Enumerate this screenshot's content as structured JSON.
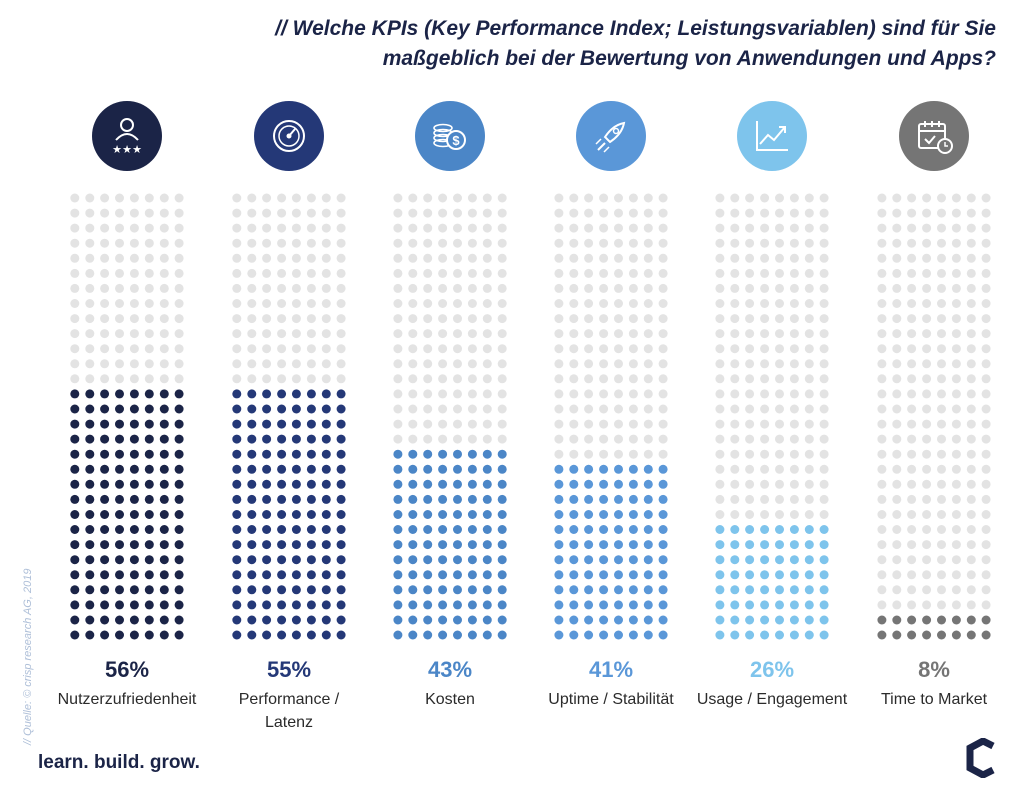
{
  "title": {
    "line1": "// Welche KPIs (Key Performance Index; Leistungsvariablen) sind für Sie",
    "line2": "maßgeblich bei der Bewertung von Anwendungen und Apps?"
  },
  "chart_data": {
    "type": "bar",
    "style": "dot-column",
    "categories": [
      "Nutzerzufriedenheit",
      "Performance / Latenz",
      "Kosten",
      "Uptime / Stabilität",
      "Usage / Engagement",
      "Time to Market"
    ],
    "category_lines": [
      [
        "Nutzerzufriedenheit"
      ],
      [
        "Performance /",
        "Latenz"
      ],
      [
        "Kosten"
      ],
      [
        "Uptime / Stabilität"
      ],
      [
        "Usage / Engagement"
      ],
      [
        "Time to Market"
      ]
    ],
    "values": [
      56,
      55,
      43,
      41,
      26,
      8
    ],
    "value_labels": [
      "56%",
      "55%",
      "43%",
      "41%",
      "26%",
      "8%"
    ],
    "unit": "%",
    "ylim": [
      0,
      100
    ],
    "icons": [
      "user-rating-icon",
      "speedometer-icon",
      "coins-dollar-icon",
      "rocket-icon",
      "growth-chart-icon",
      "calendar-clock-icon"
    ],
    "colors": [
      "#1b2447",
      "#243877",
      "#4b86c7",
      "#5a97d8",
      "#7ec4ec",
      "#757575"
    ],
    "empty_dot_color": "#e3e3e3",
    "grid": false,
    "legend": "none"
  },
  "source": "// Quelle: © crisp research AG, 2019",
  "tagline": "learn. build. grow.",
  "brand_color": "#1b2447"
}
